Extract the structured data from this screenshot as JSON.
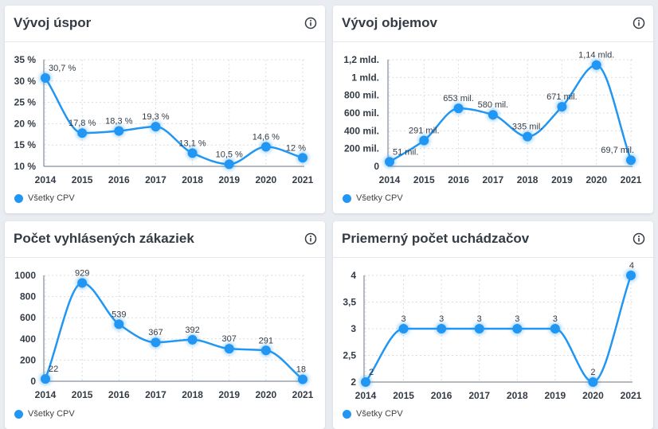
{
  "colors": {
    "series": "#2196f3",
    "axis": "#333b45",
    "grid": "#d9dde2"
  },
  "icons": {
    "info": "info-circle-icon"
  },
  "chart_data": [
    {
      "type": "line",
      "title": "Vývoj úspor",
      "x": [
        "2014",
        "2015",
        "2016",
        "2017",
        "2018",
        "2019",
        "2020",
        "2021"
      ],
      "y_ticks": [
        "35 %",
        "30 %",
        "25 %",
        "20 %",
        "15 %",
        "10 %"
      ],
      "ylim": [
        10,
        35
      ],
      "series": [
        {
          "name": "Všetky CPV",
          "values": [
            30.7,
            17.8,
            18.3,
            19.3,
            13.1,
            10.5,
            14.6,
            12
          ],
          "labels": [
            "30,7 %",
            "17,8 %",
            "18,3 %",
            "19,3 %",
            "13,1 %",
            "10,5 %",
            "14,6 %",
            "12 %"
          ]
        }
      ],
      "legend": "bottom-left"
    },
    {
      "type": "line",
      "title": "Vývoj objemov",
      "x": [
        "2014",
        "2015",
        "2016",
        "2017",
        "2018",
        "2019",
        "2020",
        "2021"
      ],
      "y_ticks": [
        "1,2 mld.",
        "1 mld.",
        "800 mil.",
        "600 mil.",
        "400 mil.",
        "200 mil.",
        "0"
      ],
      "ylim": [
        0,
        1200
      ],
      "series": [
        {
          "name": "Všetky CPV",
          "values": [
            51,
            291,
            653,
            580,
            335,
            671,
            1140,
            69.7
          ],
          "labels": [
            "51 mil.",
            "291 mil.",
            "653 mil.",
            "580 mil.",
            "335 mil.",
            "671 mil.",
            "1,14 mld.",
            "69,7 mil."
          ]
        }
      ],
      "legend": "bottom-left"
    },
    {
      "type": "line",
      "title": "Počet vyhlásených zákaziek",
      "x": [
        "2014",
        "2015",
        "2016",
        "2017",
        "2018",
        "2019",
        "2020",
        "2021"
      ],
      "y_ticks": [
        "1000",
        "800",
        "600",
        "400",
        "200",
        "0"
      ],
      "ylim": [
        0,
        1000
      ],
      "series": [
        {
          "name": "Všetky CPV",
          "values": [
            22,
            929,
            539,
            367,
            392,
            307,
            291,
            18
          ],
          "labels": [
            "22",
            "929",
            "539",
            "367",
            "392",
            "307",
            "291",
            "18"
          ]
        }
      ],
      "legend": "bottom-left"
    },
    {
      "type": "line",
      "title": "Priemerný počet uchádzačov",
      "x": [
        "2014",
        "2015",
        "2016",
        "2017",
        "2018",
        "2019",
        "2020",
        "2021"
      ],
      "y_ticks": [
        "4",
        "3,5",
        "3",
        "2,5",
        "2"
      ],
      "ylim": [
        2,
        4
      ],
      "series": [
        {
          "name": "Všetky CPV",
          "values": [
            2,
            3,
            3,
            3,
            3,
            3,
            2,
            4
          ],
          "labels": [
            "2",
            "3",
            "3",
            "3",
            "3",
            "3",
            "2",
            "4"
          ]
        }
      ],
      "legend": "bottom-left"
    }
  ]
}
